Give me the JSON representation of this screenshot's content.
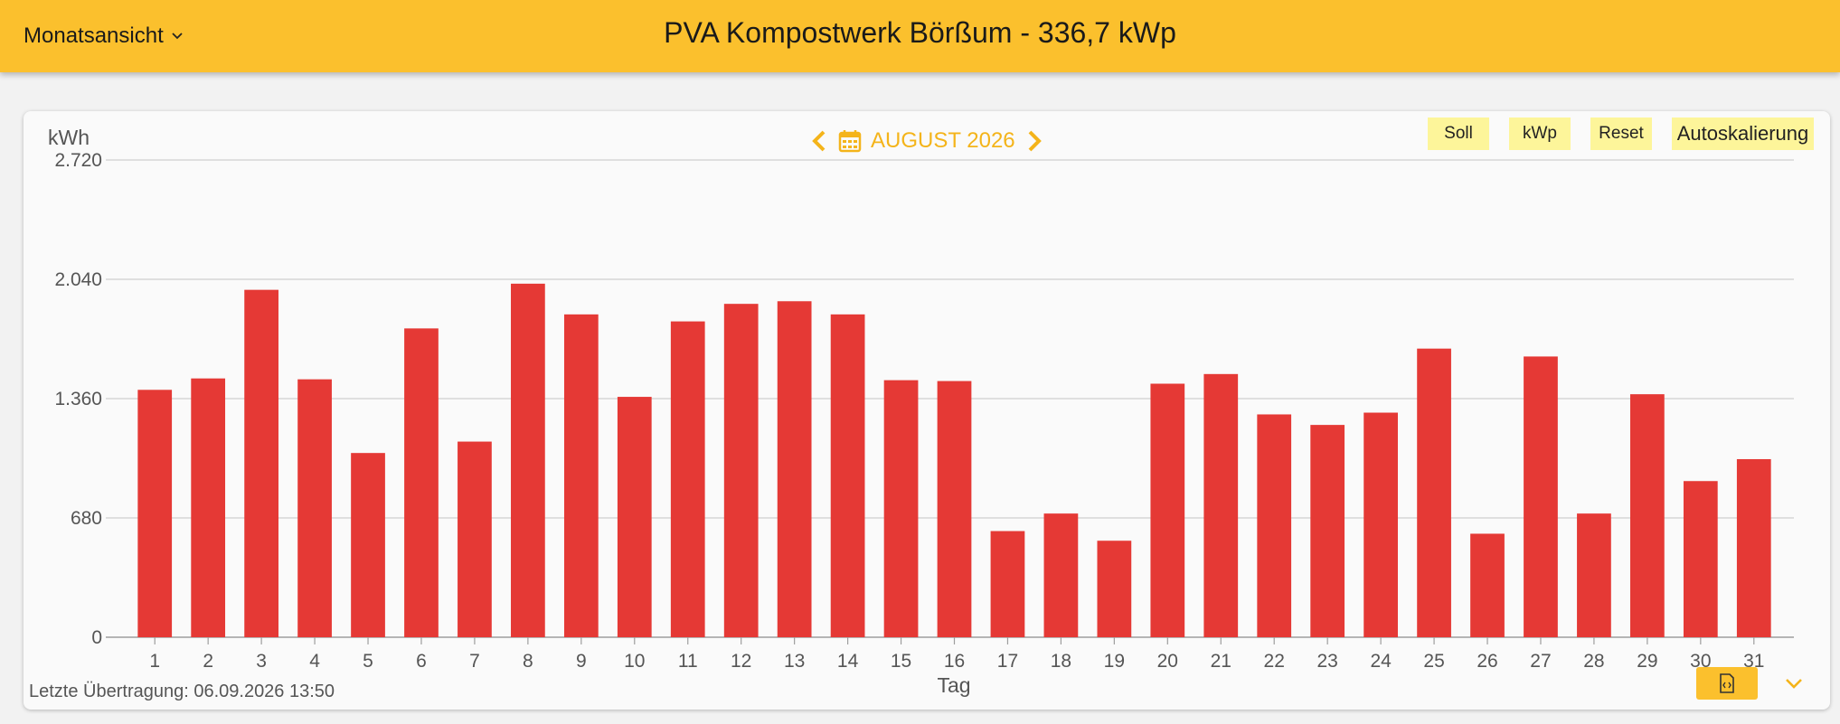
{
  "header": {
    "view_label": "Monatsansicht",
    "title": "PVA Kompostwerk Börßum - 336,7 kWp",
    "bar_color": "#fbc02d"
  },
  "nav": {
    "month_label": "AUGUST 2026",
    "prev_icon": "chevron-left-icon",
    "next_icon": "chevron-right-icon",
    "calendar_icon": "calendar-icon",
    "accent_color": "#f4b41a"
  },
  "toolbar": {
    "soll": "Soll",
    "kwp": "kWp",
    "reset": "Reset",
    "autoscale": "Autoskalierung",
    "button_color": "#fdf59a"
  },
  "footer": {
    "last_transfer": "Letzte Übertragung: 06.09.2026 13:50",
    "export_icon": "export-icon",
    "expand_icon": "chevron-down-icon"
  },
  "chart_data": {
    "type": "bar",
    "ylabel": "kWh",
    "xlabel": "Tag",
    "ylim": [
      0,
      2720
    ],
    "yticks": [
      0,
      680,
      1360,
      2040,
      2720
    ],
    "ytick_labels": [
      "0",
      "680",
      "1.360",
      "2.040",
      "2.720"
    ],
    "grid": true,
    "bar_color": "#e53935",
    "categories": [
      "1",
      "2",
      "3",
      "4",
      "5",
      "6",
      "7",
      "8",
      "9",
      "10",
      "11",
      "12",
      "13",
      "14",
      "15",
      "16",
      "17",
      "18",
      "19",
      "20",
      "21",
      "22",
      "23",
      "24",
      "25",
      "26",
      "27",
      "28",
      "29",
      "30",
      "31"
    ],
    "values": [
      1410,
      1475,
      1980,
      1470,
      1050,
      1760,
      1115,
      2015,
      1840,
      1370,
      1800,
      1900,
      1915,
      1840,
      1465,
      1460,
      605,
      705,
      550,
      1445,
      1500,
      1270,
      1210,
      1280,
      1645,
      590,
      1600,
      705,
      1385,
      890,
      1015
    ]
  }
}
